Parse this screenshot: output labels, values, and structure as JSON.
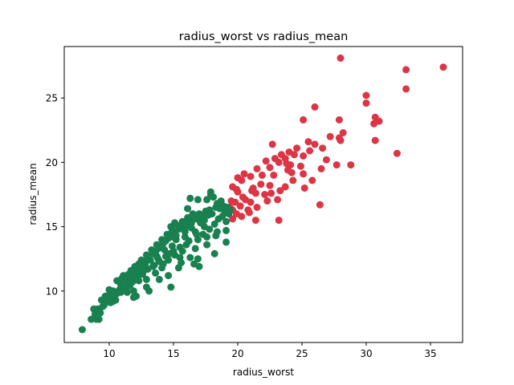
{
  "chart_data": {
    "type": "scatter",
    "title": "radius_worst vs radius_mean",
    "xlabel": "radius_worst",
    "ylabel": "radius_mean",
    "xlim": [
      6.5,
      37.5
    ],
    "ylim": [
      6.0,
      29.0
    ],
    "xticks": [
      10,
      15,
      20,
      25,
      30,
      35
    ],
    "yticks": [
      10,
      15,
      20,
      25
    ],
    "grid": false,
    "legend": "none",
    "series": [
      {
        "color": "#dc3545",
        "points": [
          [
            28.0,
            28.1
          ],
          [
            36.0,
            27.4
          ],
          [
            33.1,
            27.2
          ],
          [
            33.1,
            25.7
          ],
          [
            30.0,
            25.2
          ],
          [
            30.0,
            24.6
          ],
          [
            26.0,
            24.3
          ],
          [
            25.1,
            23.3
          ],
          [
            27.9,
            23.3
          ],
          [
            30.7,
            23.5
          ],
          [
            31.0,
            23.2
          ],
          [
            30.6,
            23.0
          ],
          [
            28.2,
            22.3
          ],
          [
            27.9,
            21.9
          ],
          [
            27.2,
            22.0
          ],
          [
            28.0,
            21.7
          ],
          [
            25.5,
            21.6
          ],
          [
            26.0,
            21.4
          ],
          [
            26.6,
            21.1
          ],
          [
            30.7,
            21.7
          ],
          [
            32.4,
            20.7
          ],
          [
            22.7,
            21.4
          ],
          [
            23.4,
            20.6
          ],
          [
            24.0,
            20.8
          ],
          [
            24.4,
            20.6
          ],
          [
            25.1,
            20.5
          ],
          [
            25.6,
            20.9
          ],
          [
            23.7,
            20.3
          ],
          [
            22.2,
            20.1
          ],
          [
            22.9,
            20.3
          ],
          [
            23.2,
            20.0
          ],
          [
            22.5,
            19.6
          ],
          [
            21.5,
            19.5
          ],
          [
            24.1,
            19.8
          ],
          [
            24.9,
            19.7
          ],
          [
            27.7,
            19.8
          ],
          [
            26.5,
            19.5
          ],
          [
            28.8,
            19.8
          ],
          [
            24.2,
            19.2
          ],
          [
            25.1,
            19.1
          ],
          [
            23.9,
            19.4
          ],
          [
            22.8,
            19.0
          ],
          [
            21.9,
            19.0
          ],
          [
            20.0,
            18.8
          ],
          [
            20.5,
            19.1
          ],
          [
            21.0,
            18.9
          ],
          [
            20.3,
            18.6
          ],
          [
            21.8,
            18.3
          ],
          [
            22.5,
            18.2
          ],
          [
            23.7,
            18.1
          ],
          [
            24.3,
            18.6
          ],
          [
            25.8,
            18.6
          ],
          [
            19.6,
            18.1
          ],
          [
            19.9,
            17.9
          ],
          [
            21.2,
            18.0
          ],
          [
            23.3,
            17.8
          ],
          [
            22.6,
            17.6
          ],
          [
            21.4,
            17.6
          ],
          [
            20.4,
            17.3
          ],
          [
            20.6,
            17.1
          ],
          [
            22.3,
            17.0
          ],
          [
            23.1,
            17.1
          ],
          [
            21.0,
            16.9
          ],
          [
            19.5,
            17.0
          ],
          [
            19.8,
            16.9
          ],
          [
            20.2,
            16.6
          ],
          [
            19.4,
            16.5
          ],
          [
            19.6,
            16.3
          ],
          [
            20.8,
            16.3
          ],
          [
            21.5,
            16.5
          ],
          [
            25.2,
            18.0
          ],
          [
            26.4,
            16.7
          ],
          [
            19.9,
            16.0
          ],
          [
            20.3,
            15.8
          ],
          [
            21.4,
            15.5
          ],
          [
            23.2,
            15.5
          ],
          [
            19.6,
            15.6
          ],
          [
            20.0,
            17.7
          ],
          [
            22.1,
            17.5
          ],
          [
            23.8,
            19.9
          ],
          [
            24.6,
            21.1
          ],
          [
            26.9,
            20.2
          ],
          [
            21.1,
            17.8
          ],
          [
            20.9,
            16.1
          ]
        ]
      },
      {
        "color": "#198050",
        "points": [
          [
            7.9,
            7.0
          ],
          [
            8.6,
            7.8
          ],
          [
            9.0,
            7.8
          ],
          [
            9.2,
            7.8
          ],
          [
            8.9,
            8.2
          ],
          [
            9.3,
            8.3
          ],
          [
            9.1,
            8.6
          ],
          [
            8.8,
            8.6
          ],
          [
            9.5,
            8.8
          ],
          [
            9.6,
            8.9
          ],
          [
            9.8,
            9.2
          ],
          [
            10.0,
            9.4
          ],
          [
            10.2,
            9.5
          ],
          [
            10.0,
            9.7
          ],
          [
            10.4,
            9.6
          ],
          [
            10.6,
            9.8
          ],
          [
            10.3,
            10.0
          ],
          [
            10.8,
            10.1
          ],
          [
            11.0,
            10.3
          ],
          [
            10.9,
            10.5
          ],
          [
            11.2,
            10.4
          ],
          [
            11.4,
            10.7
          ],
          [
            11.0,
            11.0
          ],
          [
            11.3,
            10.9
          ],
          [
            11.6,
            11.0
          ],
          [
            11.9,
            11.2
          ],
          [
            11.5,
            11.3
          ],
          [
            12.0,
            11.5
          ],
          [
            12.2,
            11.4
          ],
          [
            12.4,
            11.8
          ],
          [
            12.0,
            11.9
          ],
          [
            12.6,
            12.0
          ],
          [
            12.3,
            12.1
          ],
          [
            12.8,
            12.2
          ],
          [
            12.5,
            12.4
          ],
          [
            13.0,
            12.5
          ],
          [
            13.2,
            12.4
          ],
          [
            12.9,
            12.8
          ],
          [
            13.4,
            12.9
          ],
          [
            13.6,
            13.0
          ],
          [
            13.3,
            13.2
          ],
          [
            13.8,
            13.3
          ],
          [
            14.0,
            13.4
          ],
          [
            13.7,
            13.6
          ],
          [
            14.2,
            13.7
          ],
          [
            14.4,
            13.9
          ],
          [
            14.1,
            14.0
          ],
          [
            14.6,
            14.1
          ],
          [
            14.8,
            14.2
          ],
          [
            14.5,
            14.4
          ],
          [
            15.0,
            14.5
          ],
          [
            15.2,
            14.3
          ],
          [
            14.9,
            14.7
          ],
          [
            15.4,
            14.8
          ],
          [
            15.6,
            14.9
          ],
          [
            15.3,
            15.1
          ],
          [
            15.8,
            15.2
          ],
          [
            16.0,
            15.0
          ],
          [
            15.7,
            15.4
          ],
          [
            16.2,
            15.5
          ],
          [
            16.4,
            15.3
          ],
          [
            16.1,
            15.7
          ],
          [
            16.6,
            15.8
          ],
          [
            16.8,
            15.6
          ],
          [
            16.5,
            16.0
          ],
          [
            17.0,
            16.0
          ],
          [
            17.2,
            15.8
          ],
          [
            17.5,
            16.2
          ],
          [
            17.8,
            16.3
          ],
          [
            18.0,
            16.0
          ],
          [
            18.3,
            16.5
          ],
          [
            18.6,
            16.4
          ],
          [
            18.9,
            16.6
          ],
          [
            19.2,
            16.5
          ],
          [
            19.4,
            16.3
          ],
          [
            19.0,
            16.1
          ],
          [
            18.4,
            16.8
          ],
          [
            17.6,
            17.1
          ],
          [
            17.9,
            17.7
          ],
          [
            17.9,
            17.5
          ],
          [
            16.9,
            17.1
          ],
          [
            18.1,
            17.3
          ],
          [
            16.3,
            17.2
          ],
          [
            14.8,
            15.0
          ],
          [
            15.1,
            15.3
          ],
          [
            15.9,
            14.2
          ],
          [
            16.7,
            14.6
          ],
          [
            17.3,
            14.4
          ],
          [
            17.4,
            15.0
          ],
          [
            18.2,
            15.2
          ],
          [
            18.5,
            15.6
          ],
          [
            19.1,
            15.4
          ],
          [
            19.1,
            14.7
          ],
          [
            18.3,
            14.3
          ],
          [
            17.6,
            14.2
          ],
          [
            16.9,
            14.0
          ],
          [
            16.0,
            13.6
          ],
          [
            15.5,
            13.4
          ],
          [
            15.0,
            13.1
          ],
          [
            14.4,
            12.7
          ],
          [
            13.9,
            12.3
          ],
          [
            13.5,
            12.0
          ],
          [
            13.0,
            11.7
          ],
          [
            12.6,
            11.3
          ],
          [
            12.2,
            11.0
          ],
          [
            11.8,
            10.7
          ],
          [
            11.3,
            10.2
          ],
          [
            10.9,
            9.9
          ],
          [
            10.5,
            9.3
          ],
          [
            10.1,
            9.1
          ],
          [
            12.9,
            10.9
          ],
          [
            13.6,
            11.4
          ],
          [
            14.1,
            11.8
          ],
          [
            14.6,
            12.4
          ],
          [
            15.1,
            12.8
          ],
          [
            15.7,
            13.1
          ],
          [
            16.3,
            12.6
          ],
          [
            16.9,
            12.5
          ],
          [
            17.6,
            13.6
          ],
          [
            19.1,
            13.8
          ],
          [
            18.2,
            12.9
          ],
          [
            15.6,
            12.2
          ],
          [
            14.6,
            11.2
          ],
          [
            13.9,
            10.9
          ],
          [
            12.9,
            10.3
          ],
          [
            12.1,
            9.6
          ],
          [
            11.9,
            10.0
          ],
          [
            11.4,
            9.9
          ],
          [
            13.1,
            10.0
          ],
          [
            11.9,
            9.5
          ],
          [
            14.8,
            10.3
          ],
          [
            16.6,
            12.1
          ],
          [
            17.0,
            11.9
          ],
          [
            15.4,
            11.8
          ],
          [
            18.4,
            14.6
          ],
          [
            17.7,
            15.9
          ],
          [
            16.1,
            16.4
          ],
          [
            15.2,
            14.0
          ],
          [
            14.3,
            13.2
          ],
          [
            13.7,
            12.7
          ],
          [
            12.8,
            12.0
          ],
          [
            12.1,
            11.8
          ],
          [
            11.7,
            11.6
          ],
          [
            11.1,
            11.2
          ],
          [
            10.6,
            10.8
          ],
          [
            10.0,
            10.1
          ],
          [
            9.4,
            9.3
          ],
          [
            9.7,
            9.6
          ],
          [
            14.9,
            13.5
          ],
          [
            15.9,
            14.6
          ],
          [
            16.4,
            14.9
          ],
          [
            17.1,
            15.3
          ],
          [
            17.4,
            15.5
          ],
          [
            18.8,
            15.8
          ],
          [
            19.3,
            16.0
          ],
          [
            18.7,
            17.0
          ],
          [
            14.2,
            12.1
          ],
          [
            13.4,
            11.9
          ],
          [
            15.5,
            12.6
          ],
          [
            16.7,
            13.3
          ],
          [
            17.8,
            14.8
          ],
          [
            16.2,
            13.9
          ],
          [
            14.7,
            12.9
          ],
          [
            13.8,
            12.5
          ],
          [
            12.7,
            11.6
          ],
          [
            12.3,
            10.8
          ],
          [
            11.6,
            10.4
          ],
          [
            10.7,
            9.9
          ],
          [
            10.3,
            9.2
          ],
          [
            16.8,
            14.4
          ]
        ]
      }
    ]
  }
}
